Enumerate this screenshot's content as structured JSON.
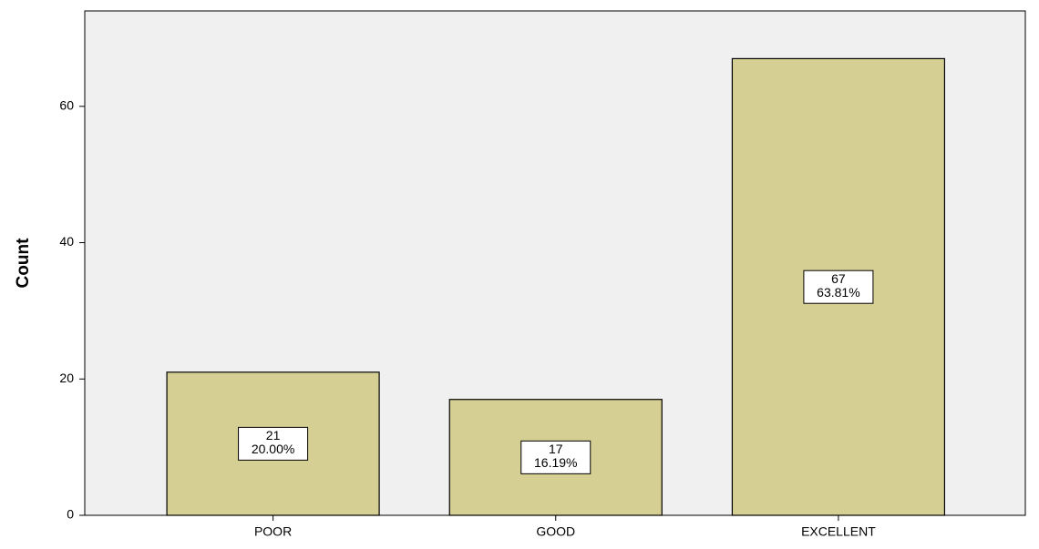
{
  "chart_data": {
    "type": "bar",
    "y_label": "Count",
    "categories": [
      "POOR",
      "GOOD",
      "EXCELLENT"
    ],
    "values": [
      21,
      17,
      67
    ],
    "percent_labels": [
      "20.00%",
      "16.19%",
      "63.81%"
    ],
    "color": "#d6cf94",
    "background": "#f0f0f0",
    "ylim": [
      0,
      74
    ],
    "yticks": [
      0,
      20,
      40,
      60
    ]
  }
}
